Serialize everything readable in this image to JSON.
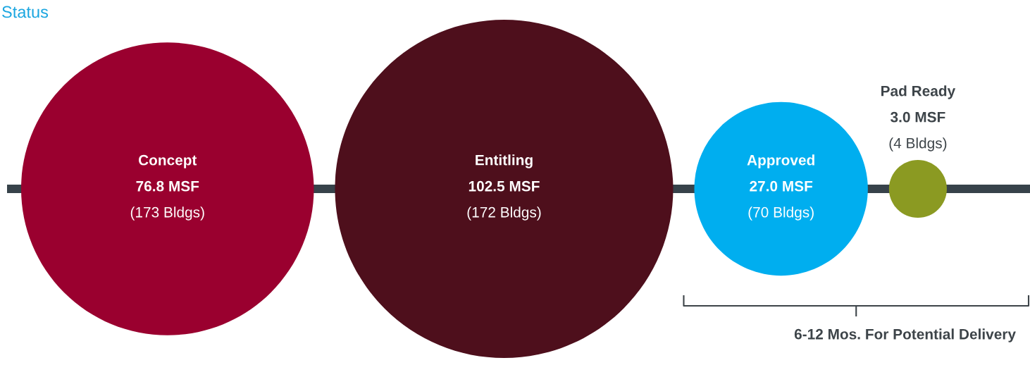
{
  "chart_data": {
    "type": "other",
    "title": "Status",
    "categories": [
      "Concept",
      "Entitling",
      "Approved",
      "Pad Ready"
    ],
    "values": [
      76.8,
      102.5,
      27.0,
      3.0
    ],
    "colors": [
      "#9a002f",
      "#4e0f1c",
      "#00aeef",
      "#8b9a22"
    ],
    "value_labels": [
      "76.8 MSF",
      "102.5 MSF",
      "27.0 MSF",
      "3.0 MSF"
    ],
    "annotations": [
      "(173 Bldgs)",
      "(172 Bldgs)",
      "(70 Bldgs)",
      "(4 Bldgs)",
      "6-12 Mos. For Potential Delivery"
    ]
  }
}
